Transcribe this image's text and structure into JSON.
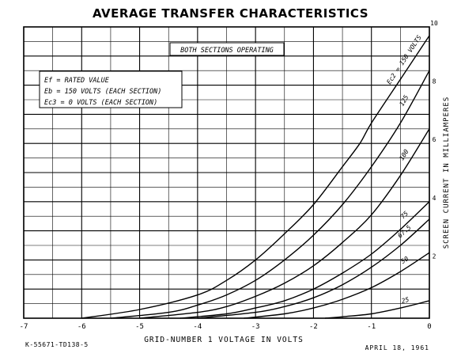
{
  "chart_data": {
    "type": "line",
    "title": "AVERAGE TRANSFER CHARACTERISTICS",
    "xlabel": "GRID-NUMBER 1 VOLTAGE IN VOLTS",
    "ylabel": "SCREEN CURRENT IN MILLIAMPERES",
    "xlim": [
      -7,
      0
    ],
    "ylim": [
      0,
      10
    ],
    "x_ticks": [
      "-7",
      "-6",
      "-5",
      "-4",
      "-3",
      "-2",
      "-1",
      "0"
    ],
    "y_ticks": [
      "2",
      "4",
      "6",
      "8",
      "10"
    ],
    "grid": true,
    "annotations": {
      "operating": "BOTH SECTIONS OPERATING",
      "conditions": [
        "Ef = RATED VALUE",
        "Eb = 150 VOLTS (EACH SECTION)",
        "Ec3 = 0 VOLTS (EACH SECTION)"
      ]
    },
    "series": [
      {
        "name": "Ec2 = 150 VOLTS",
        "label": "Ec2 = 150 VOLTS",
        "x": [
          -6.0,
          -5.0,
          -4.0,
          -3.5,
          -3.0,
          -2.5,
          -2.0,
          -1.5,
          -1.2,
          -1.0,
          -0.5,
          0.0
        ],
        "y": [
          0.0,
          0.3,
          0.8,
          1.3,
          2.0,
          2.9,
          3.9,
          5.2,
          6.0,
          6.7,
          8.2,
          9.7
        ]
      },
      {
        "name": "125",
        "label": "125",
        "x": [
          -5.5,
          -4.5,
          -4.0,
          -3.5,
          -3.0,
          -2.5,
          -2.0,
          -1.5,
          -1.0,
          -0.5,
          0.0
        ],
        "y": [
          0.0,
          0.2,
          0.45,
          0.8,
          1.3,
          2.0,
          2.85,
          3.9,
          5.2,
          6.7,
          8.5
        ]
      },
      {
        "name": "100",
        "label": "100",
        "x": [
          -5.0,
          -4.0,
          -3.5,
          -3.0,
          -2.5,
          -2.0,
          -1.5,
          -1.0,
          -0.5,
          0.0
        ],
        "y": [
          0.0,
          0.2,
          0.4,
          0.75,
          1.2,
          1.8,
          2.6,
          3.55,
          4.9,
          6.5
        ]
      },
      {
        "name": "75",
        "label": "75",
        "x": [
          -4.3,
          -3.5,
          -3.0,
          -2.5,
          -2.0,
          -1.5,
          -1.0,
          -0.5,
          0.0
        ],
        "y": [
          0.0,
          0.15,
          0.35,
          0.6,
          1.0,
          1.55,
          2.2,
          3.05,
          4.0
        ]
      },
      {
        "name": "67.5",
        "label": "67.5",
        "x": [
          -4.0,
          -3.0,
          -2.5,
          -2.0,
          -1.5,
          -1.0,
          -0.5,
          0.0
        ],
        "y": [
          0.0,
          0.2,
          0.4,
          0.7,
          1.15,
          1.75,
          2.5,
          3.4
        ]
      },
      {
        "name": "50",
        "label": "50",
        "x": [
          -3.2,
          -2.5,
          -2.0,
          -1.5,
          -1.0,
          -0.5,
          0.0
        ],
        "y": [
          0.0,
          0.15,
          0.35,
          0.65,
          1.05,
          1.6,
          2.25
        ]
      },
      {
        "name": "25",
        "label": "25",
        "x": [
          -1.8,
          -1.5,
          -1.0,
          -0.5,
          0.0
        ],
        "y": [
          0.0,
          0.05,
          0.15,
          0.35,
          0.6
        ]
      }
    ]
  },
  "footer": {
    "left_code": "K-55671-TD138-5",
    "date": "APRIL 18, 1961"
  }
}
